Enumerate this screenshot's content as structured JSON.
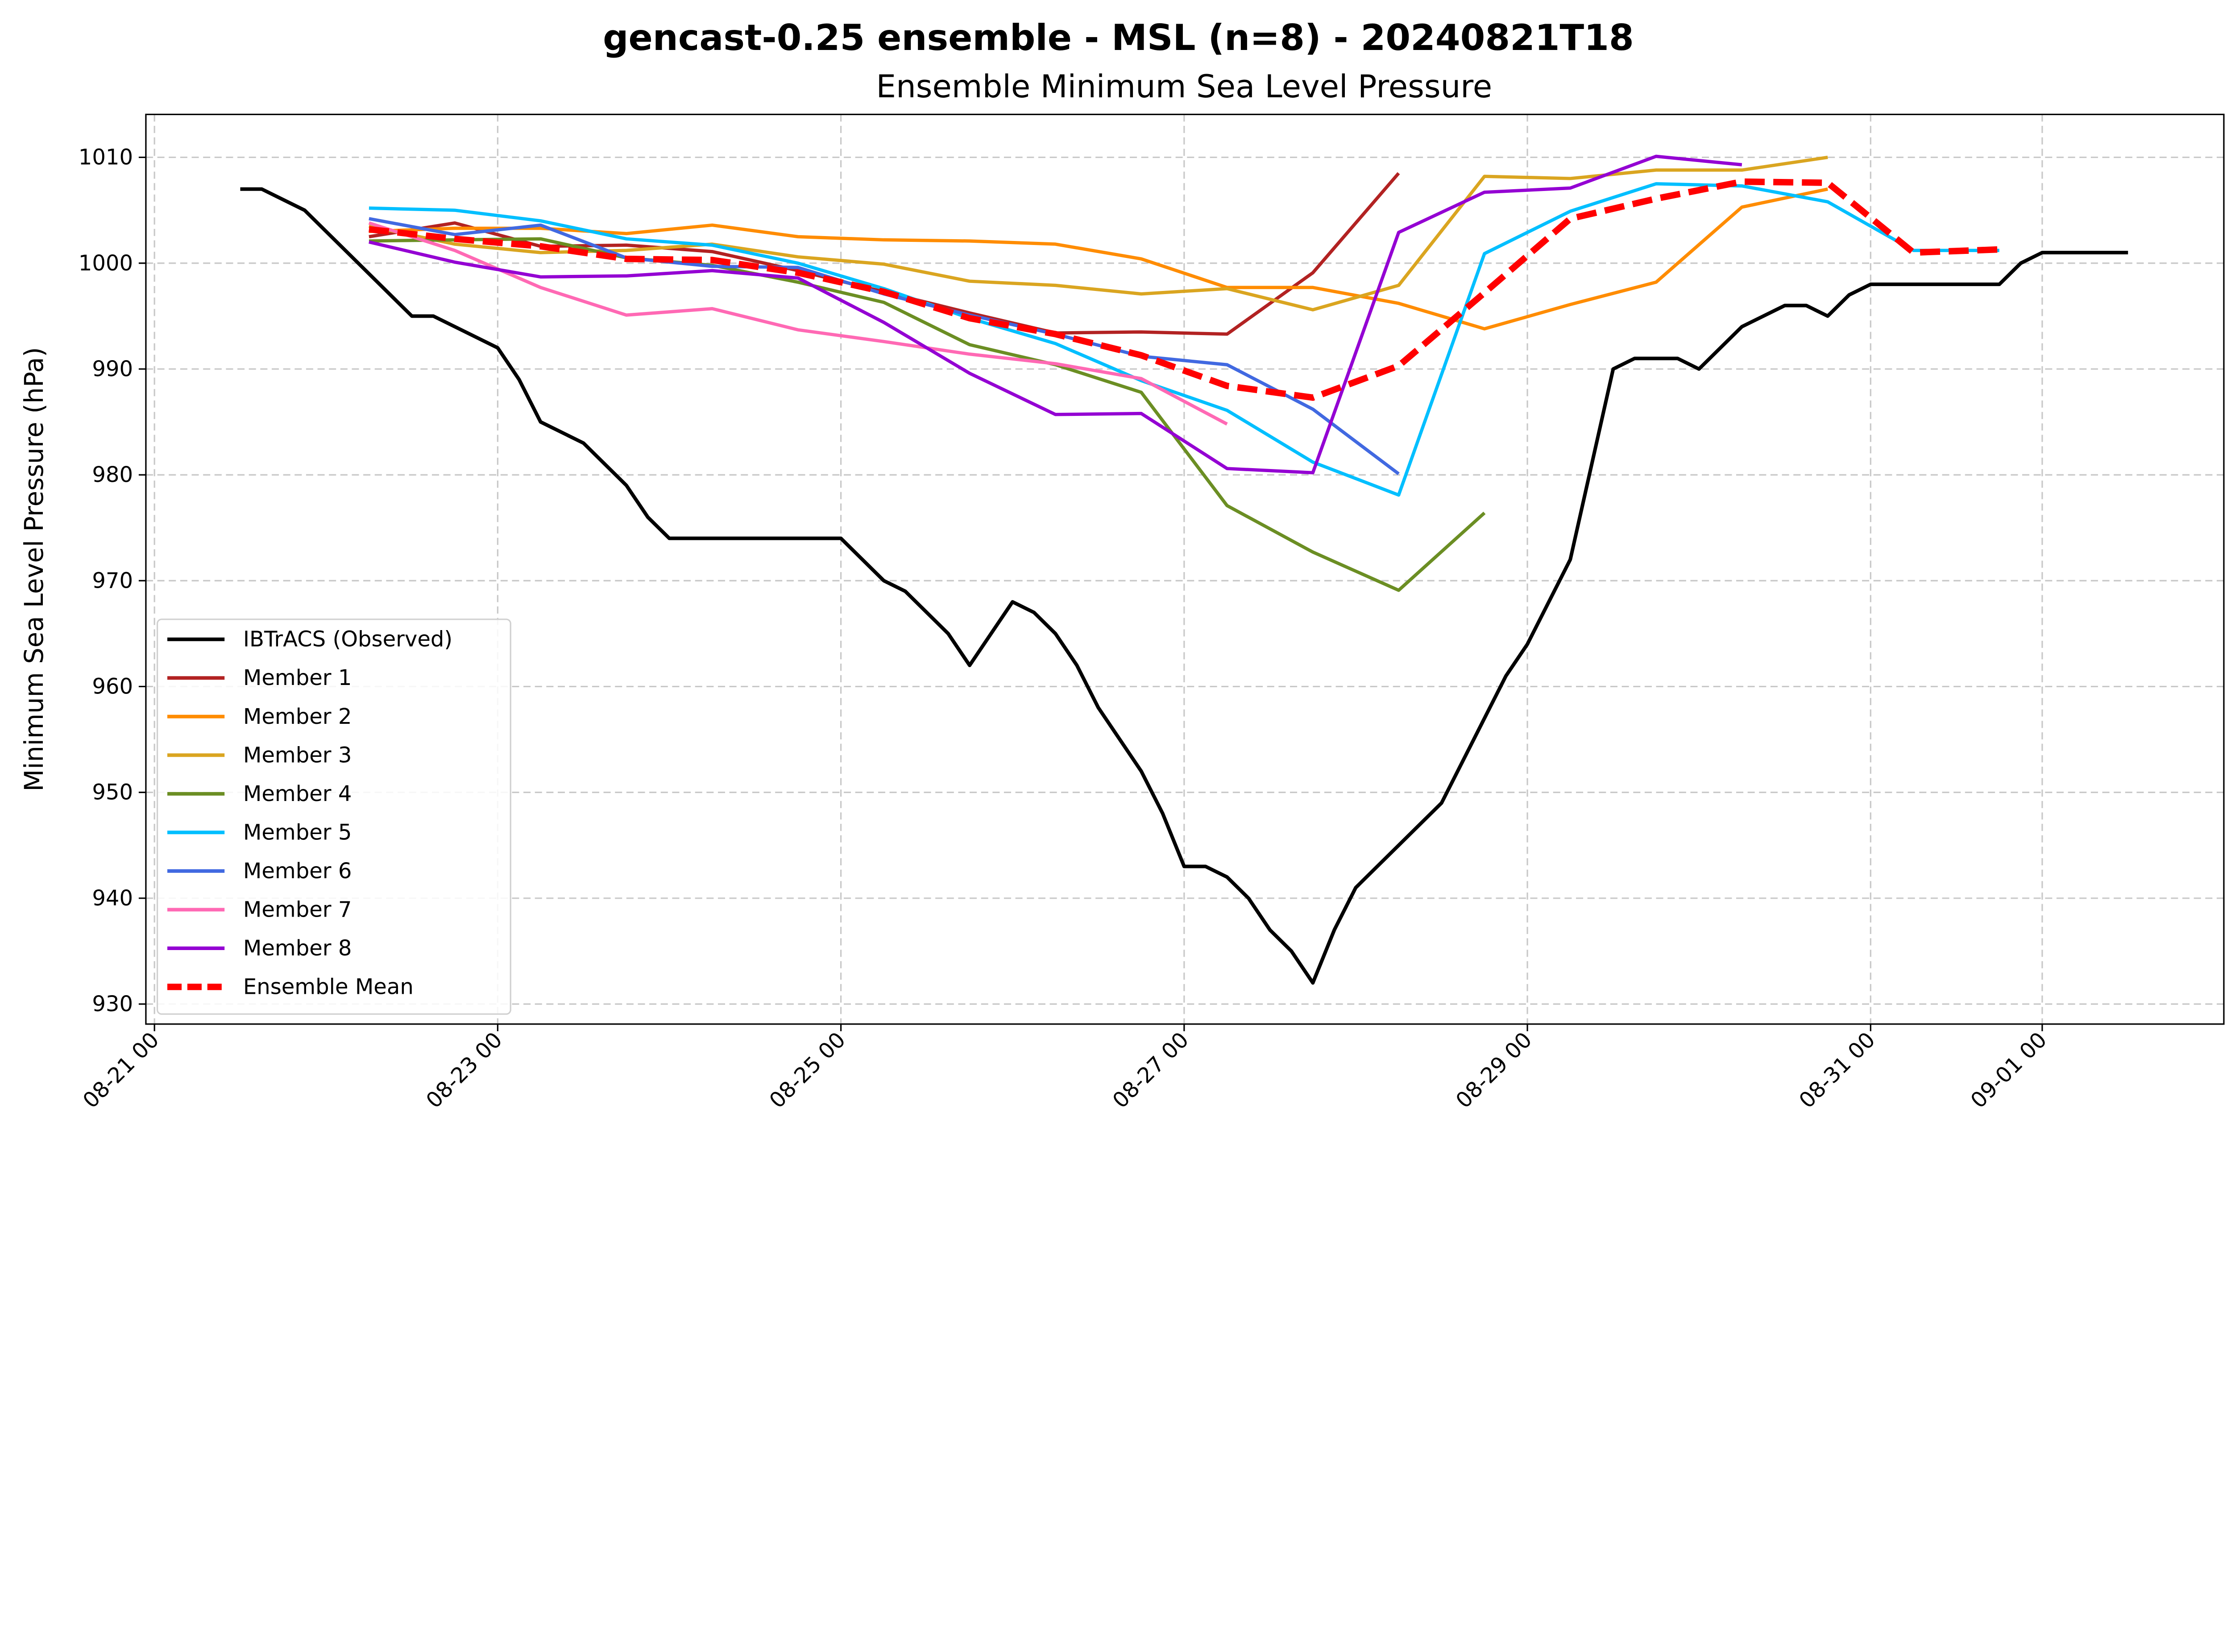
{
  "chart_data": {
    "type": "line",
    "title": "gencast-0.25 ensemble - MSL (n=8) - 20240821T18",
    "subtitle": "Ensemble Minimum Sea Level Pressure",
    "xlabel": "",
    "ylabel": "Minimum Sea Level Pressure (hPa)",
    "xlim": [
      "2024-08-20 22:48",
      "2024-09-02 01:30"
    ],
    "ylim": [
      928.1,
      1014.1
    ],
    "grid": true,
    "legend_position": "lower-left",
    "x_ticks": [
      {
        "t": "2024-08-21 00:00",
        "label": "08-21 00"
      },
      {
        "t": "2024-08-23 00:00",
        "label": "08-23 00"
      },
      {
        "t": "2024-08-25 00:00",
        "label": "08-25 00"
      },
      {
        "t": "2024-08-27 00:00",
        "label": "08-27 00"
      },
      {
        "t": "2024-08-29 00:00",
        "label": "08-29 00"
      },
      {
        "t": "2024-08-31 00:00",
        "label": "08-31 00"
      },
      {
        "t": "2024-09-01 00:00",
        "label": "09-01 00"
      }
    ],
    "y_ticks": [
      "930",
      "940",
      "950",
      "960",
      "970",
      "980",
      "990",
      "1000",
      "1010"
    ],
    "observed": {
      "name": "IBTrACS (Observed)",
      "color": "#000000",
      "x": [
        "2024-08-21 12:00",
        "2024-08-21 15:00",
        "2024-08-21 21:00",
        "2024-08-22 12:00",
        "2024-08-22 15:00",
        "2024-08-23 00:00",
        "2024-08-23 03:00",
        "2024-08-23 06:00",
        "2024-08-23 12:00",
        "2024-08-23 18:00",
        "2024-08-23 21:00",
        "2024-08-24 00:00",
        "2024-08-25 00:00",
        "2024-08-25 06:00",
        "2024-08-25 09:00",
        "2024-08-25 15:00",
        "2024-08-25 18:00",
        "2024-08-26 00:00",
        "2024-08-26 03:00",
        "2024-08-26 06:00",
        "2024-08-26 09:00",
        "2024-08-26 12:00",
        "2024-08-26 18:00",
        "2024-08-26 21:00",
        "2024-08-27 00:00",
        "2024-08-27 03:00",
        "2024-08-27 06:00",
        "2024-08-27 09:00",
        "2024-08-27 12:00",
        "2024-08-27 15:00",
        "2024-08-27 18:00",
        "2024-08-27 21:00",
        "2024-08-28 00:00",
        "2024-08-28 06:00",
        "2024-08-28 12:00",
        "2024-08-28 18:00",
        "2024-08-28 21:00",
        "2024-08-29 00:00",
        "2024-08-29 06:00",
        "2024-08-29 09:00",
        "2024-08-29 12:00",
        "2024-08-29 15:00",
        "2024-08-29 21:00",
        "2024-08-30 00:00",
        "2024-08-30 06:00",
        "2024-08-30 12:00",
        "2024-08-30 15:00",
        "2024-08-30 18:00",
        "2024-08-30 21:00",
        "2024-08-31 00:00",
        "2024-08-31 18:00",
        "2024-08-31 21:00",
        "2024-09-01 00:00",
        "2024-09-01 12:00"
      ],
      "values": [
        1007,
        1007,
        1005,
        995,
        995,
        992,
        989,
        985,
        983,
        979,
        976,
        974,
        974,
        970,
        969,
        965,
        962,
        968,
        967,
        965,
        962,
        958,
        952,
        948,
        943,
        943,
        942,
        940,
        937,
        935,
        932,
        937,
        941,
        945,
        949,
        957,
        961,
        964,
        972,
        981,
        990,
        991,
        991,
        990,
        994,
        996,
        996,
        995,
        997,
        998,
        998,
        1000,
        1001,
        1001
      ]
    },
    "member_times": [
      "2024-08-22 06:00",
      "2024-08-22 18:00",
      "2024-08-23 06:00",
      "2024-08-23 18:00",
      "2024-08-24 06:00",
      "2024-08-24 18:00",
      "2024-08-25 06:00",
      "2024-08-25 18:00",
      "2024-08-26 06:00",
      "2024-08-26 18:00",
      "2024-08-27 06:00",
      "2024-08-27 18:00",
      "2024-08-28 06:00",
      "2024-08-28 18:00",
      "2024-08-29 06:00",
      "2024-08-29 18:00",
      "2024-08-30 06:00",
      "2024-08-30 18:00",
      "2024-08-31 06:00",
      "2024-08-31 18:00"
    ],
    "series": [
      {
        "name": "Member 1",
        "color": "#b22222",
        "values": [
          1002.5,
          1003.8,
          1001.6,
          1001.7,
          1001.1,
          999.3,
          997.3,
          995.3,
          993.4,
          993.5,
          993.3,
          999.1,
          1008.5
        ]
      },
      {
        "name": "Member 2",
        "color": "#ff8c00",
        "values": [
          1003.0,
          1003.3,
          1003.3,
          1002.8,
          1003.6,
          1002.5,
          1002.2,
          1002.1,
          1001.8,
          1000.4,
          997.7,
          997.7,
          996.2,
          993.8,
          996.1,
          998.2,
          1005.3,
          1007.0
        ]
      },
      {
        "name": "Member 3",
        "color": "#daa520",
        "values": [
          1003.5,
          1001.8,
          1001.0,
          1001.2,
          1001.8,
          1000.6,
          999.9,
          998.3,
          997.9,
          997.1,
          997.6,
          995.6,
          997.9,
          1008.2,
          1008.0,
          1008.8,
          1008.8,
          1010.0
        ]
      },
      {
        "name": "Member 4",
        "color": "#6b8e23",
        "values": [
          1002.1,
          1002.2,
          1002.3,
          1000.5,
          999.8,
          998.2,
          996.3,
          992.3,
          990.4,
          987.8,
          977.1,
          972.7,
          969.1,
          976.4
        ]
      },
      {
        "name": "Member 5",
        "color": "#00bfff",
        "values": [
          1005.2,
          1005.0,
          1004.0,
          1002.3,
          1001.7,
          1000.0,
          997.6,
          994.8,
          992.4,
          988.9,
          986.1,
          981.2,
          978.1,
          1000.9,
          1004.9,
          1007.5,
          1007.3,
          1005.8,
          1001.2,
          1001.2
        ]
      },
      {
        "name": "Member 6",
        "color": "#4169e1",
        "values": [
          1004.2,
          1002.7,
          1003.6,
          1000.5,
          999.7,
          999.6,
          997.1,
          995.1,
          993.3,
          991.2,
          990.4,
          986.2,
          980.1
        ]
      },
      {
        "name": "Member 7",
        "color": "#ff69b4",
        "values": [
          1003.8,
          1001.2,
          997.7,
          995.1,
          995.7,
          993.7,
          992.6,
          991.4,
          990.5,
          989.1,
          984.8
        ]
      },
      {
        "name": "Member 8",
        "color": "#9400d3",
        "values": [
          1002.0,
          1000.1,
          998.7,
          998.8,
          999.3,
          998.6,
          994.4,
          989.6,
          985.7,
          985.8,
          980.6,
          980.2,
          1002.9,
          1006.7,
          1007.1,
          1010.1,
          1009.3
        ]
      }
    ],
    "mean": {
      "name": "Ensemble Mean",
      "color": "#ff0000",
      "values": [
        1003.2,
        1002.3,
        1001.6,
        1000.4,
        1000.3,
        999.1,
        997.3,
        994.8,
        993.3,
        991.3,
        988.4,
        987.3,
        990.3,
        997.2,
        1004.2,
        1006.1,
        1007.7,
        1007.6,
        1001.0,
        1001.3
      ]
    }
  }
}
